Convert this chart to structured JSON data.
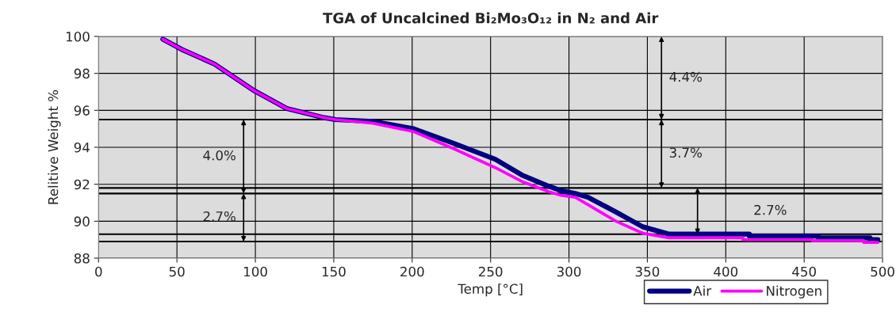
{
  "chart_data": {
    "type": "line",
    "title": "TGA of Uncalcined Bi₂Mo₃O₁₂ in N₂ and Air",
    "xlabel": "Temp [°C]",
    "ylabel": "Relitive Weight %",
    "xlim": [
      0,
      500
    ],
    "xticks": [
      0,
      50,
      100,
      150,
      200,
      250,
      300,
      350,
      400,
      450,
      500
    ],
    "ylim": [
      88,
      100
    ],
    "yticks": [
      88,
      90,
      92,
      94,
      96,
      98,
      100
    ],
    "grid": true,
    "legend": "bottom right",
    "line_style": "solid",
    "marker": "none",
    "series": [
      {
        "name": "Air",
        "color": "#000080",
        "x": [
          41,
          53,
          74,
          99.5,
          120,
          144,
          151,
          175,
          201,
          227,
          253,
          270,
          287,
          295,
          304,
          312,
          330,
          347,
          364,
          415,
          415,
          459,
          459,
          492,
          492,
          497
        ],
        "values": [
          99.85,
          99.3,
          98.5,
          97.05,
          96.1,
          95.6,
          95.5,
          95.4,
          95.0,
          94.2,
          93.35,
          92.5,
          91.9,
          91.65,
          91.5,
          91.3,
          90.5,
          89.7,
          89.3,
          89.3,
          89.2,
          89.2,
          89.1,
          89.1,
          89.0,
          89.0
        ]
      },
      {
        "name": "Nitrogen",
        "color": "#ff00ff",
        "x": [
          41,
          53,
          74,
          99.5,
          120,
          144,
          151,
          175,
          201,
          227,
          253,
          270,
          287,
          295,
          304,
          312,
          330,
          347,
          364,
          411,
          411,
          455,
          455,
          488,
          488,
          497
        ],
        "values": [
          99.85,
          99.3,
          98.5,
          97.05,
          96.1,
          95.6,
          95.5,
          95.3,
          94.85,
          93.9,
          92.9,
          92.15,
          91.6,
          91.4,
          91.3,
          90.9,
          90.0,
          89.35,
          89.1,
          89.1,
          89.0,
          89.0,
          88.95,
          88.95,
          88.85,
          88.85
        ]
      }
    ],
    "ref_lines": [
      {
        "axis": "y",
        "value": 95.5,
        "color": "#000000"
      },
      {
        "axis": "y",
        "value": 91.5,
        "color": "#000000"
      },
      {
        "axis": "y",
        "value": 91.8,
        "color": "#000000"
      },
      {
        "axis": "y",
        "value": 88.9,
        "color": "#000000"
      },
      {
        "axis": "y",
        "value": 89.3,
        "color": "#000000"
      }
    ],
    "annotations": [
      "4.0%",
      "2.7%",
      "4.4%",
      "3.7%",
      "2.7%"
    ]
  }
}
